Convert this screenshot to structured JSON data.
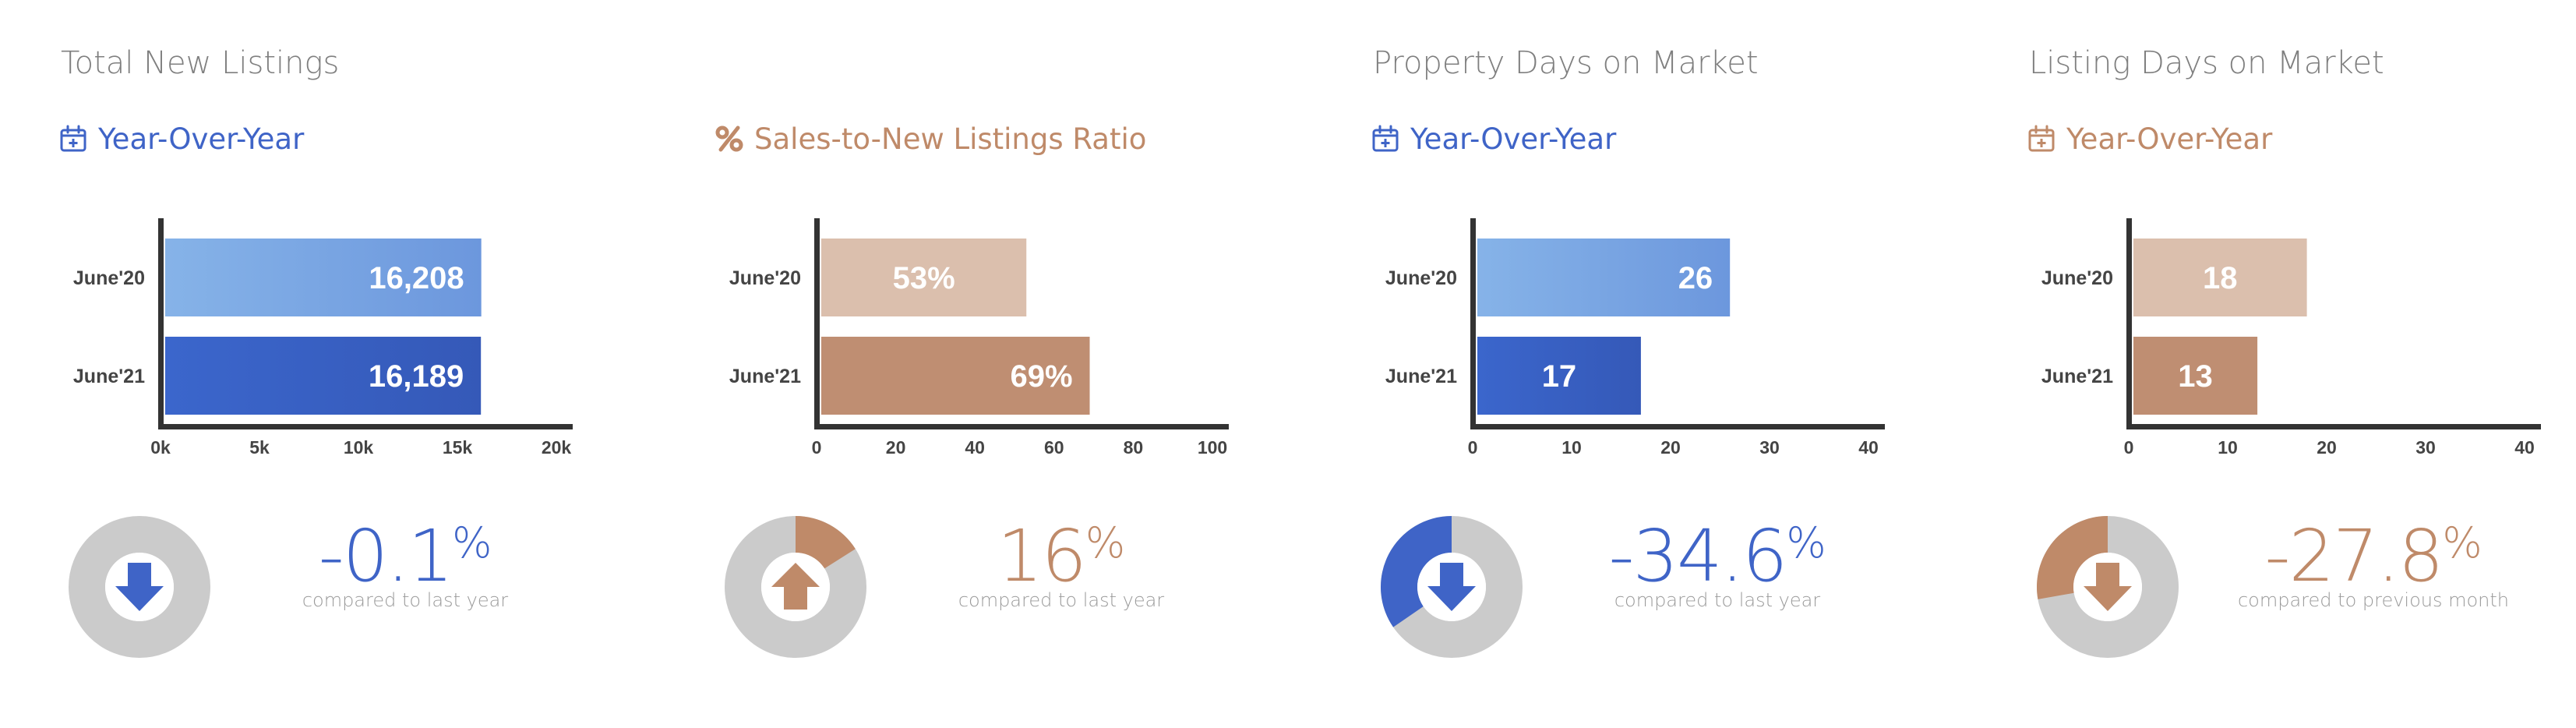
{
  "colors": {
    "blue": "#3f64c7",
    "blue_light": "#86b3e8",
    "blue_dark": "#3559b8",
    "tan": "#bf8a69",
    "tan_light": "#dbbfad",
    "tan_mid": "#bf8e72",
    "axis": "#333333",
    "ring": "#cbcbcb"
  },
  "panels": [
    {
      "title": "Total New Listings",
      "subtitle": "Year-Over-Year",
      "subtitle_icon": "calendar-plus-icon",
      "accent": "blue",
      "big_value": "-0.1",
      "big_value_unit": "%",
      "compare_text": "compared to last year",
      "direction": "down",
      "donut_fraction": 0.001
    },
    {
      "title": "",
      "subtitle": "Sales-to-New Listings Ratio",
      "subtitle_icon": "percent-icon",
      "accent": "tan",
      "big_value": "16",
      "big_value_unit": "%",
      "compare_text": "compared to last year",
      "direction": "up",
      "donut_fraction": 0.16
    },
    {
      "title": "Property Days on Market",
      "subtitle": "Year-Over-Year",
      "subtitle_icon": "calendar-plus-icon",
      "accent": "blue",
      "big_value": "-34.6",
      "big_value_unit": "%",
      "compare_text": "compared to last year",
      "direction": "down",
      "donut_fraction": 0.346
    },
    {
      "title": "Listing Days on Market",
      "subtitle": "Year-Over-Year",
      "subtitle_icon": "calendar-plus-icon",
      "accent": "tan",
      "big_value": "-27.8",
      "big_value_unit": "%",
      "compare_text": "compared to previous month",
      "direction": "down",
      "donut_fraction": 0.278
    }
  ],
  "chart_data": [
    {
      "type": "bar",
      "orientation": "horizontal",
      "title": "Total New Listings",
      "categories": [
        "June'20",
        "June'21"
      ],
      "values": [
        16208,
        16189
      ],
      "value_labels": [
        "16,208",
        "16,189"
      ],
      "xlim": [
        0,
        20000
      ],
      "xticks": [
        0,
        5000,
        10000,
        15000,
        20000
      ],
      "xtick_labels": [
        "0k",
        "5k",
        "10k",
        "15k",
        "20k"
      ],
      "grid": false,
      "legend": "none"
    },
    {
      "type": "bar",
      "orientation": "horizontal",
      "title": "Sales-to-New Listings Ratio",
      "categories": [
        "June'20",
        "June'21"
      ],
      "values": [
        53,
        69
      ],
      "value_labels": [
        "53%",
        "69%"
      ],
      "xlim": [
        0,
        100
      ],
      "xticks": [
        0,
        20,
        40,
        60,
        80,
        100
      ],
      "xtick_labels": [
        "0",
        "20",
        "40",
        "60",
        "80",
        "100"
      ],
      "grid": false,
      "legend": "none"
    },
    {
      "type": "bar",
      "orientation": "horizontal",
      "title": "Property Days on Market",
      "categories": [
        "June'20",
        "June'21"
      ],
      "values": [
        26,
        17
      ],
      "value_labels": [
        "26",
        "17"
      ],
      "xlim": [
        0,
        40
      ],
      "xticks": [
        0,
        10,
        20,
        30,
        40
      ],
      "xtick_labels": [
        "0",
        "10",
        "20",
        "30",
        "40"
      ],
      "grid": false,
      "legend": "none"
    },
    {
      "type": "bar",
      "orientation": "horizontal",
      "title": "Listing Days on Market",
      "categories": [
        "June'20",
        "June'21"
      ],
      "values": [
        18,
        13
      ],
      "value_labels": [
        "18",
        "13"
      ],
      "xlim": [
        0,
        40
      ],
      "xticks": [
        0,
        10,
        20,
        30,
        40
      ],
      "xtick_labels": [
        "0",
        "10",
        "20",
        "30",
        "40"
      ],
      "grid": false,
      "legend": "none"
    }
  ]
}
